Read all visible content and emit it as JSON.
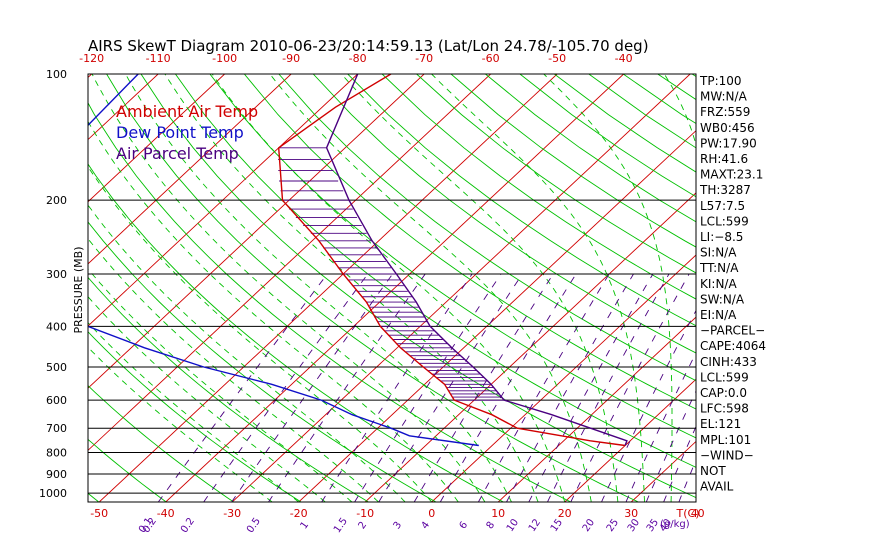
{
  "chart_data": {
    "type": "line",
    "title": "AIRS SkewT Diagram 2010-06-23/20:14:59.13 (Lat/Lon 24.78/-105.70 deg)",
    "ylabel": "PRESSURE (MB)",
    "top_temp_ticks": [
      "-120",
      "-110",
      "-100",
      "-90",
      "-80",
      "-70",
      "-60",
      "-50",
      "-40"
    ],
    "bottom_temp_ticks": [
      "-50",
      "-40",
      "-30",
      "-20",
      "-10",
      "0",
      "10",
      "20",
      "30",
      "40"
    ],
    "bottom_temp_unit": "T(C)",
    "pressure_ticks": [
      {
        "label": "100",
        "p": 100
      },
      {
        "label": "200",
        "p": 200
      },
      {
        "label": "300",
        "p": 300
      },
      {
        "label": "400",
        "p": 400
      },
      {
        "label": "500",
        "p": 500
      },
      {
        "label": "600",
        "p": 600
      },
      {
        "label": "700",
        "p": 700
      },
      {
        "label": "800",
        "p": 800
      },
      {
        "label": "900",
        "p": 900
      },
      {
        "label": "1000",
        "p": 1000
      }
    ],
    "mixing_ratio_ticks": [
      "0.1",
      "0.2",
      "0.2",
      "0.5",
      "1",
      "1.5",
      "2",
      "3",
      "4",
      "6",
      "8",
      "10",
      "12",
      "15",
      "20",
      "25",
      "30",
      "35",
      "40"
    ],
    "mixing_ratio_unit": "g/kg",
    "legend": [
      {
        "label": "Ambient Air Temp",
        "color": "#d00000"
      },
      {
        "label": "Dew Point Temp",
        "color": "#1010c8"
      },
      {
        "label": "Air Parcel Temp",
        "color": "#4a0080"
      }
    ],
    "series": [
      {
        "name": "Ambient Air Temp",
        "color": "#d00000",
        "points": [
          [
            100,
            -75
          ],
          [
            120,
            -78
          ],
          [
            150,
            -80
          ],
          [
            200,
            -71
          ],
          [
            250,
            -59
          ],
          [
            300,
            -50
          ],
          [
            350,
            -42
          ],
          [
            400,
            -36
          ],
          [
            450,
            -29.5
          ],
          [
            500,
            -23
          ],
          [
            550,
            -17
          ],
          [
            600,
            -13
          ],
          [
            650,
            -5
          ],
          [
            700,
            1
          ],
          [
            750,
            14
          ],
          [
            770,
            20
          ]
        ]
      },
      {
        "name": "Dew Point Temp",
        "color": "#1010c8",
        "points": [
          [
            100,
            -113
          ],
          [
            150,
            -112
          ],
          [
            200,
            -104
          ],
          [
            250,
            -97
          ],
          [
            300,
            -90
          ],
          [
            350,
            -84.5
          ],
          [
            400,
            -80
          ],
          [
            450,
            -68
          ],
          [
            500,
            -56
          ],
          [
            550,
            -43
          ],
          [
            600,
            -33
          ],
          [
            650,
            -26
          ],
          [
            700,
            -18
          ],
          [
            730,
            -14
          ],
          [
            770,
            -2
          ]
        ]
      },
      {
        "name": "Air Parcel Temp",
        "color": "#4a0080",
        "points": [
          [
            100,
            -80
          ],
          [
            150,
            -72.8
          ],
          [
            200,
            -61
          ],
          [
            250,
            -51
          ],
          [
            300,
            -42
          ],
          [
            350,
            -34.5
          ],
          [
            400,
            -28.5
          ],
          [
            450,
            -21.8
          ],
          [
            500,
            -15.5
          ],
          [
            550,
            -10
          ],
          [
            600,
            -5.5
          ],
          [
            650,
            4
          ],
          [
            700,
            12
          ],
          [
            750,
            19.5
          ],
          [
            770,
            20
          ]
        ]
      }
    ]
  },
  "indices": [
    "TP:100",
    "MW:N/A",
    "FRZ:559",
    "WB0:456",
    "PW:17.90",
    "RH:41.6",
    "MAXT:23.1",
    "TH:3287",
    "L57:7.5",
    "LCL:599",
    "LI:−8.5",
    "SI:N/A",
    "TT:N/A",
    "KI:N/A",
    "SW:N/A",
    "EI:N/A",
    "−PARCEL−",
    "CAPE:4064",
    "CINH:433",
    "LCL:599",
    "CAP:0.0",
    "LFC:598",
    "EL:121",
    "MPL:101",
    "−WIND−",
    "NOT",
    "AVAIL"
  ],
  "colors": {
    "isotherm": "#d00000",
    "dry_adiabat": "#00c000",
    "moist_adiabat": "#00c000",
    "mixing_ratio": "#4a0080",
    "isobar": "#000000",
    "cape_hatch": "#4a0080"
  }
}
